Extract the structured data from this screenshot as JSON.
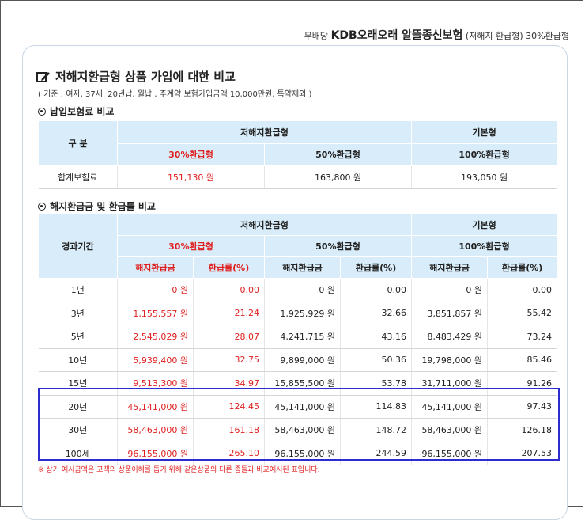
{
  "header": {
    "prefix": "무배당",
    "product": "KDB오래오래 알뜰종신보험",
    "suffix": "(저해지 환급형) 30%환급형"
  },
  "title": "저해지환급형 상품 가입에 대한 비교",
  "basis": "( 기준 : 여자, 37세, 20년납,  월납 , 주계약 보험가입금액 10,000만원, 특약제외 )",
  "section1": {
    "heading": "납입보험료 비교",
    "h_gubun": "구 분",
    "h_low": "저해지환급형",
    "h_base": "기본형",
    "h_30": "30%환급형",
    "h_50": "50%환급형",
    "h_100": "100%환급형",
    "row_label": "합계보험료",
    "v30": "151,130 원",
    "v50": "163,800 원",
    "v100": "193,050 원"
  },
  "section2": {
    "heading": "해지환급금 및 환급률 비교",
    "h_period": "경과기간",
    "h_low": "저해지환급형",
    "h_base": "기본형",
    "h_30": "30%환급형",
    "h_50": "50%환급형",
    "h_100": "100%환급형",
    "h_amount": "해지환급금",
    "h_rate": "환급률(%)",
    "rows": [
      {
        "period": "1년",
        "a30": "0 원",
        "r30": "0.00",
        "a50": "0 원",
        "r50": "0.00",
        "a100": "0 원",
        "r100": "0.00"
      },
      {
        "period": "3년",
        "a30": "1,155,557 원",
        "r30": "21.24",
        "a50": "1,925,929 원",
        "r50": "32.66",
        "a100": "3,851,857 원",
        "r100": "55.42"
      },
      {
        "period": "5년",
        "a30": "2,545,029 원",
        "r30": "28.07",
        "a50": "4,241,715 원",
        "r50": "43.16",
        "a100": "8,483,429 원",
        "r100": "73.24"
      },
      {
        "period": "10년",
        "a30": "5,939,400 원",
        "r30": "32.75",
        "a50": "9,899,000 원",
        "r50": "50.36",
        "a100": "19,798,000 원",
        "r100": "85.46"
      },
      {
        "period": "15년",
        "a30": "9,513,300 원",
        "r30": "34.97",
        "a50": "15,855,500 원",
        "r50": "53.78",
        "a100": "31,711,000 원",
        "r100": "91.26"
      },
      {
        "period": "20년",
        "a30": "45,141,000 원",
        "r30": "124.45",
        "a50": "45,141,000 원",
        "r50": "114.83",
        "a100": "45,141,000 원",
        "r100": "97.43"
      },
      {
        "period": "30년",
        "a30": "58,463,000 원",
        "r30": "161.18",
        "a50": "58,463,000 원",
        "r50": "148.72",
        "a100": "58,463,000 원",
        "r100": "126.18"
      },
      {
        "period": "100세",
        "a30": "96,155,000 원",
        "r30": "265.10",
        "a50": "96,155,000 원",
        "r50": "244.59",
        "a100": "96,155,000 원",
        "r100": "207.53"
      }
    ]
  },
  "note": "※ 상기 예시금액은 고객의 상품이해를 돕기 위해 같은상품의 다른 종들과 비교예시된 표입니다.",
  "colors": {
    "header_bg": "#d8ecf9",
    "highlight": "#e02020",
    "box": "#2c2ccf"
  },
  "icons": {
    "title_icon": "edit-icon",
    "section_icon": "target-icon"
  }
}
